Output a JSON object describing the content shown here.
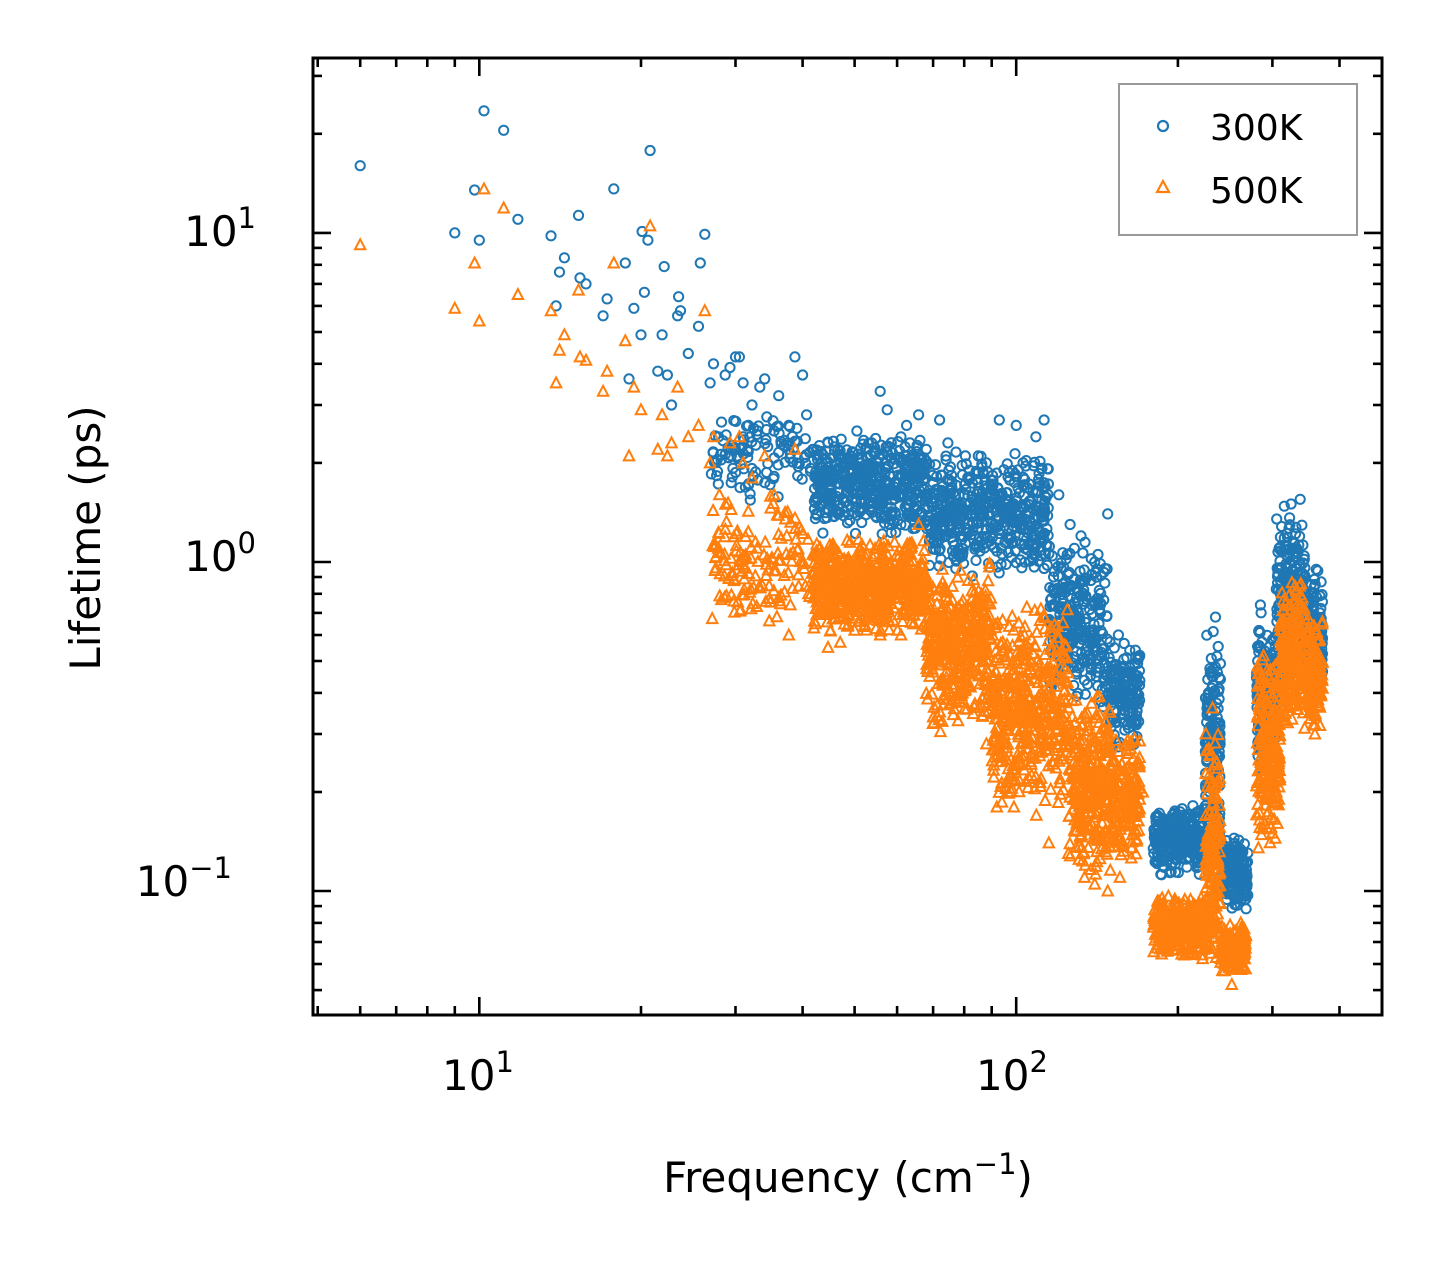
{
  "chart_data": {
    "type": "scatter",
    "xscale": "log",
    "yscale": "log",
    "xlim": [
      4.9,
      480
    ],
    "ylim": [
      0.042,
      34
    ],
    "xlabel": "Frequency (cm",
    "xlabel_sup": "−1",
    "xlabel_tail": ")",
    "ylabel": "Lifetime (ps)",
    "x_ticks": [
      {
        "value": 10,
        "base": "10",
        "exp": "1"
      },
      {
        "value": 100,
        "base": "10",
        "exp": "2"
      }
    ],
    "y_ticks": [
      {
        "value": 0.1,
        "base": "10",
        "exp": "−1"
      },
      {
        "value": 1,
        "base": "10",
        "exp": "0"
      },
      {
        "value": 10,
        "base": "10",
        "exp": "1"
      }
    ],
    "legend_position": "top-right",
    "series": [
      {
        "name": "300K",
        "marker": "circle",
        "color": "#1f77b4",
        "highlights": [
          [
            6.0,
            16.0
          ],
          [
            9.0,
            10.0
          ],
          [
            9.8,
            13.5
          ],
          [
            10.0,
            9.5
          ],
          [
            10.2,
            23.5
          ],
          [
            11.1,
            20.5
          ],
          [
            11.8,
            11.0
          ],
          [
            13.6,
            9.8
          ],
          [
            13.9,
            6.0
          ],
          [
            14.1,
            7.6
          ],
          [
            14.4,
            8.4
          ],
          [
            15.3,
            11.3
          ],
          [
            15.4,
            7.3
          ],
          [
            15.8,
            7.0
          ],
          [
            17.0,
            5.6
          ],
          [
            17.3,
            6.3
          ],
          [
            17.8,
            13.6
          ],
          [
            18.7,
            8.1
          ],
          [
            19.0,
            3.6
          ],
          [
            19.4,
            5.9
          ],
          [
            20.0,
            4.9
          ],
          [
            20.1,
            10.1
          ],
          [
            20.3,
            6.6
          ],
          [
            20.6,
            9.5
          ],
          [
            20.8,
            17.8
          ],
          [
            21.5,
            3.8
          ],
          [
            21.9,
            4.9
          ],
          [
            22.1,
            7.9
          ],
          [
            22.4,
            3.7
          ],
          [
            22.8,
            3.0
          ],
          [
            23.4,
            5.6
          ],
          [
            23.5,
            6.4
          ],
          [
            23.7,
            5.8
          ],
          [
            24.5,
            4.3
          ],
          [
            25.6,
            5.2
          ],
          [
            25.8,
            8.1
          ],
          [
            26.3,
            9.9
          ],
          [
            26.9,
            3.5
          ],
          [
            27.3,
            4.0
          ],
          [
            27.9,
            2.4
          ],
          [
            28.7,
            3.7
          ],
          [
            29.3,
            3.9
          ],
          [
            30.0,
            4.2
          ],
          [
            30.5,
            4.2
          ],
          [
            31.0,
            3.5
          ],
          [
            31.7,
            2.6
          ],
          [
            32.2,
            3.0
          ],
          [
            33.3,
            3.4
          ],
          [
            34.0,
            3.6
          ],
          [
            35.4,
            2.5
          ],
          [
            36.1,
            3.2
          ],
          [
            37.7,
            2.6
          ],
          [
            38.7,
            4.2
          ],
          [
            40.0,
            3.7
          ],
          [
            40.7,
            2.8
          ],
          [
            42.0,
            2.2
          ],
          [
            44.6,
            2.3
          ],
          [
            47.0,
            2.1
          ],
          [
            50.5,
            2.5
          ],
          [
            53.8,
            2.3
          ],
          [
            55.8,
            3.3
          ],
          [
            57.5,
            2.9
          ],
          [
            61.0,
            2.4
          ],
          [
            62.5,
            2.6
          ],
          [
            65.8,
            2.8
          ],
          [
            68.0,
            2.2
          ],
          [
            72.0,
            2.7
          ],
          [
            74.6,
            2.3
          ],
          [
            80.4,
            2.1
          ],
          [
            85.0,
            2.1
          ],
          [
            93.0,
            2.7
          ],
          [
            100.0,
            2.6
          ],
          [
            103.0,
            2.0
          ],
          [
            108.8,
            2.4
          ],
          [
            112.7,
            2.7
          ],
          [
            120.0,
            1.6
          ],
          [
            126.0,
            1.3
          ],
          [
            132.0,
            1.2
          ],
          [
            140.0,
            1.0
          ],
          [
            148.0,
            1.4
          ],
          [
            155.0,
            0.6
          ],
          [
            162.0,
            0.35
          ],
          [
            235.0,
            0.68
          ],
          [
            240.0,
            0.44
          ],
          [
            285.0,
            0.74
          ],
          [
            325.0,
            1.5
          ],
          [
            338.0,
            1.55
          ],
          [
            362.0,
            0.95
          ]
        ],
        "bands": [
          {
            "x0": 27,
            "x1": 42,
            "lo": 1.5,
            "hi": 3.0,
            "n": 110
          },
          {
            "x0": 42,
            "x1": 68,
            "lo": 1.2,
            "hi": 2.5,
            "n": 500
          },
          {
            "x0": 68,
            "x1": 115,
            "lo": 0.9,
            "hi": 2.2,
            "n": 500
          },
          {
            "x0": 115,
            "x1": 148,
            "lo": 0.35,
            "hi": 1.2,
            "n": 280
          },
          {
            "x0": 148,
            "x1": 170,
            "lo": 0.26,
            "hi": 0.6,
            "n": 160
          },
          {
            "x0": 180,
            "x1": 225,
            "lo": 0.11,
            "hi": 0.185,
            "n": 280
          },
          {
            "x0": 225,
            "x1": 240,
            "lo": 0.12,
            "hi": 0.65,
            "n": 150
          },
          {
            "x0": 240,
            "x1": 270,
            "lo": 0.085,
            "hi": 0.15,
            "n": 160
          },
          {
            "x0": 280,
            "x1": 305,
            "lo": 0.2,
            "hi": 0.72,
            "n": 200
          },
          {
            "x0": 305,
            "x1": 345,
            "lo": 0.4,
            "hi": 1.5,
            "n": 230
          },
          {
            "x0": 345,
            "x1": 372,
            "lo": 0.4,
            "hi": 0.95,
            "n": 140
          }
        ]
      },
      {
        "name": "500K",
        "marker": "triangle",
        "color": "#ff7f0e",
        "highlights": [
          [
            6.0,
            9.2
          ],
          [
            9.0,
            5.9
          ],
          [
            9.8,
            8.1
          ],
          [
            10.0,
            5.4
          ],
          [
            10.2,
            13.6
          ],
          [
            11.1,
            11.9
          ],
          [
            11.8,
            6.5
          ],
          [
            13.6,
            5.8
          ],
          [
            13.9,
            3.5
          ],
          [
            14.1,
            4.4
          ],
          [
            14.4,
            4.9
          ],
          [
            15.3,
            6.7
          ],
          [
            15.4,
            4.2
          ],
          [
            15.8,
            4.1
          ],
          [
            17.0,
            3.3
          ],
          [
            17.3,
            3.8
          ],
          [
            17.8,
            8.1
          ],
          [
            18.7,
            4.7
          ],
          [
            19.0,
            2.1
          ],
          [
            19.4,
            3.4
          ],
          [
            20.0,
            2.9
          ],
          [
            20.8,
            10.5
          ],
          [
            21.5,
            2.2
          ],
          [
            21.9,
            2.8
          ],
          [
            22.4,
            2.1
          ],
          [
            22.8,
            2.3
          ],
          [
            23.4,
            3.4
          ],
          [
            24.5,
            2.4
          ],
          [
            25.6,
            2.6
          ],
          [
            26.3,
            5.8
          ],
          [
            26.9,
            2.0
          ],
          [
            27.3,
            2.4
          ],
          [
            28.0,
            1.6
          ],
          [
            29.3,
            2.3
          ],
          [
            30.5,
            2.4
          ],
          [
            31.0,
            2.0
          ],
          [
            32.2,
            1.8
          ],
          [
            34.0,
            2.1
          ],
          [
            35.4,
            1.6
          ],
          [
            37.7,
            0.6
          ],
          [
            38.7,
            2.2
          ],
          [
            42.0,
            0.63
          ],
          [
            44.6,
            0.55
          ],
          [
            47.0,
            0.57
          ],
          [
            50.0,
            0.62
          ],
          [
            55.8,
            0.6
          ],
          [
            61.0,
            0.6
          ],
          [
            65.8,
            1.3
          ],
          [
            72.0,
            0.5
          ],
          [
            80.4,
            0.41
          ],
          [
            88.0,
            0.28
          ],
          [
            92.0,
            0.18
          ],
          [
            99.0,
            0.18
          ],
          [
            109.0,
            0.17
          ],
          [
            115.0,
            0.14
          ],
          [
            125.0,
            0.13
          ],
          [
            134.0,
            0.11
          ],
          [
            140.0,
            0.105
          ],
          [
            148.0,
            0.1
          ],
          [
            156.0,
            0.11
          ],
          [
            172.0,
            0.2
          ],
          [
            232.0,
            0.36
          ],
          [
            252.0,
            0.052
          ],
          [
            262.0,
            0.08
          ],
          [
            300.0,
            0.15
          ],
          [
            305.0,
            0.2
          ],
          [
            318.0,
            0.75
          ],
          [
            360.0,
            0.3
          ]
        ],
        "bands": [
          {
            "x0": 27,
            "x1": 42,
            "lo": 0.6,
            "hi": 1.6,
            "n": 150
          },
          {
            "x0": 42,
            "x1": 68,
            "lo": 0.6,
            "hi": 1.2,
            "n": 600
          },
          {
            "x0": 68,
            "x1": 90,
            "lo": 0.3,
            "hi": 1.0,
            "n": 400
          },
          {
            "x0": 90,
            "x1": 125,
            "lo": 0.17,
            "hi": 0.75,
            "n": 450
          },
          {
            "x0": 125,
            "x1": 150,
            "lo": 0.11,
            "hi": 0.42,
            "n": 300
          },
          {
            "x0": 150,
            "x1": 170,
            "lo": 0.12,
            "hi": 0.3,
            "n": 170
          },
          {
            "x0": 180,
            "x1": 225,
            "lo": 0.062,
            "hi": 0.1,
            "n": 300
          },
          {
            "x0": 225,
            "x1": 240,
            "lo": 0.055,
            "hi": 0.34,
            "n": 170
          },
          {
            "x0": 240,
            "x1": 268,
            "lo": 0.055,
            "hi": 0.08,
            "n": 160
          },
          {
            "x0": 280,
            "x1": 310,
            "lo": 0.13,
            "hi": 0.55,
            "n": 220
          },
          {
            "x0": 310,
            "x1": 345,
            "lo": 0.3,
            "hi": 0.9,
            "n": 220
          },
          {
            "x0": 345,
            "x1": 372,
            "lo": 0.3,
            "hi": 0.7,
            "n": 140
          }
        ]
      }
    ]
  }
}
